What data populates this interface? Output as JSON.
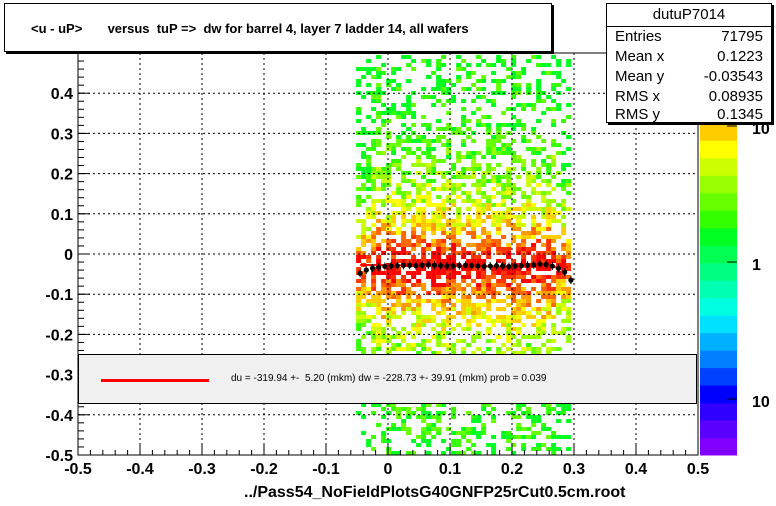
{
  "title": "<u - uP>       versus  tuP =>  dw for barrel 4, layer 7 ladder 14, all wafers",
  "file_label": "../Pass54_NoFieldPlotsG40GNFP25rCut0.5cm.root",
  "stats": {
    "name": "dutuP7014",
    "rows": [
      {
        "key": "Entries",
        "value": "71795"
      },
      {
        "key": "Mean x",
        "value": "0.1223"
      },
      {
        "key": "Mean y",
        "value": "-0.03543"
      },
      {
        "key": "RMS x",
        "value": "0.08935"
      },
      {
        "key": "RMS y",
        "value": "0.1345"
      }
    ]
  },
  "fit_text": "du = -319.94 +-  5.20 (mkm) dw = -228.73 +- 39.91 (mkm) prob = 0.039",
  "colors": {
    "fit_line": "#ff0000",
    "profile_points": "#000000",
    "frame": "#000000"
  },
  "chart_data": {
    "type": "heatmap",
    "xlim": [
      -0.5,
      0.5
    ],
    "ylim": [
      -0.5,
      0.5
    ],
    "x_ticks": [
      "-0.5",
      "-0.4",
      "-0.3",
      "-0.2",
      "-0.1",
      "0",
      "0.1",
      "0.2",
      "0.3",
      "0.4",
      "0.5"
    ],
    "y_ticks": [
      "-0.5",
      "-0.4",
      "-0.3",
      "-0.2",
      "-0.1",
      "0",
      "0.1",
      "0.2",
      "0.3",
      "0.4"
    ],
    "z_scale": "log",
    "z_ticks": [
      "10",
      "1",
      "10"
    ],
    "grid": true,
    "occupied_x_range": [
      -0.045,
      0.29
    ],
    "profile_points": [
      {
        "x": -0.045,
        "y": -0.048
      },
      {
        "x": -0.035,
        "y": -0.04
      },
      {
        "x": -0.025,
        "y": -0.035
      },
      {
        "x": -0.015,
        "y": -0.033
      },
      {
        "x": -0.005,
        "y": -0.031
      },
      {
        "x": 0.005,
        "y": -0.03
      },
      {
        "x": 0.015,
        "y": -0.029
      },
      {
        "x": 0.025,
        "y": -0.028
      },
      {
        "x": 0.035,
        "y": -0.028
      },
      {
        "x": 0.045,
        "y": -0.029
      },
      {
        "x": 0.055,
        "y": -0.028
      },
      {
        "x": 0.065,
        "y": -0.027
      },
      {
        "x": 0.075,
        "y": -0.028
      },
      {
        "x": 0.085,
        "y": -0.029
      },
      {
        "x": 0.095,
        "y": -0.03
      },
      {
        "x": 0.105,
        "y": -0.03
      },
      {
        "x": 0.115,
        "y": -0.029
      },
      {
        "x": 0.125,
        "y": -0.028
      },
      {
        "x": 0.135,
        "y": -0.029
      },
      {
        "x": 0.145,
        "y": -0.03
      },
      {
        "x": 0.155,
        "y": -0.031
      },
      {
        "x": 0.165,
        "y": -0.03
      },
      {
        "x": 0.175,
        "y": -0.029
      },
      {
        "x": 0.185,
        "y": -0.03
      },
      {
        "x": 0.195,
        "y": -0.031
      },
      {
        "x": 0.205,
        "y": -0.03
      },
      {
        "x": 0.215,
        "y": -0.029
      },
      {
        "x": 0.225,
        "y": -0.028
      },
      {
        "x": 0.235,
        "y": -0.027
      },
      {
        "x": 0.245,
        "y": -0.025
      },
      {
        "x": 0.255,
        "y": -0.026
      },
      {
        "x": 0.265,
        "y": -0.03
      },
      {
        "x": 0.275,
        "y": -0.036
      },
      {
        "x": 0.285,
        "y": -0.045
      },
      {
        "x": 0.295,
        "y": -0.065
      }
    ],
    "fit_line": {
      "x": [
        -0.045,
        0.29
      ],
      "y": [
        -0.027,
        -0.033
      ]
    }
  }
}
